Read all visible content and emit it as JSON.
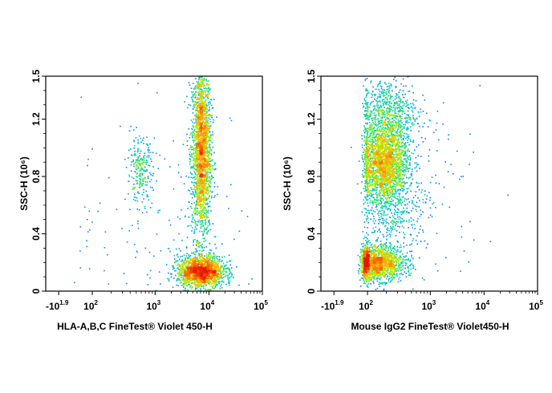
{
  "chart_data": [
    {
      "type": "scatter",
      "subtype": "flow-cytometry-density-dot-plot",
      "xlabel": "HLA-A,B,C  FineTest® Violet 450-H",
      "ylabel": "SSC-H (10⁶)",
      "x_scale": "biexponential",
      "x_ticks": [
        {
          "base": "-10",
          "exp": "1.9"
        },
        {
          "base": "10",
          "exp": "2"
        },
        {
          "base": "10",
          "exp": "3"
        },
        {
          "base": "10",
          "exp": "4"
        },
        {
          "base": "10",
          "exp": "5"
        }
      ],
      "y_ticks": [
        "0",
        "0.4",
        "0.8",
        "1.2",
        "1.5"
      ],
      "ylim": [
        0,
        1.5
      ],
      "populations": [
        {
          "x_log10": 3.85,
          "y": 0.98,
          "sx_log10": 0.09,
          "sy": 0.3,
          "n": 2300
        },
        {
          "x_log10": 3.85,
          "y": 0.14,
          "sx_log10": 0.22,
          "sy": 0.055,
          "n": 1800
        },
        {
          "x_log10": 2.75,
          "y": 0.84,
          "sx_log10": 0.1,
          "sy": 0.11,
          "n": 240
        },
        {
          "x_log10": 3.2,
          "y": 0.5,
          "sx_log10": 0.9,
          "sy": 0.4,
          "n": 160
        }
      ]
    },
    {
      "type": "scatter",
      "subtype": "flow-cytometry-density-dot-plot",
      "xlabel": "Mouse IgG2  FineTest® Violet450-H",
      "ylabel": "SSC-H (10⁶)",
      "x_scale": "biexponential",
      "x_ticks": [
        {
          "base": "-10",
          "exp": "1.9"
        },
        {
          "base": "10",
          "exp": "2"
        },
        {
          "base": "10",
          "exp": "3"
        },
        {
          "base": "10",
          "exp": "4"
        },
        {
          "base": "10",
          "exp": "5"
        }
      ],
      "y_ticks": [
        "0",
        "0.4",
        "0.8",
        "1.2",
        "1.5"
      ],
      "ylim": [
        0,
        1.5
      ],
      "populations": [
        {
          "x_log10": 2.25,
          "y": 0.9,
          "sx_log10": 0.2,
          "sy": 0.14,
          "n": 2400
        },
        {
          "x_log10": 2.3,
          "y": 1.25,
          "sx_log10": 0.24,
          "sy": 0.12,
          "n": 700
        },
        {
          "x_log10": 2.1,
          "y": 0.2,
          "sx_log10": 0.24,
          "sy": 0.06,
          "n": 1800
        },
        {
          "x_log10": 2.4,
          "y": 0.55,
          "sx_log10": 0.28,
          "sy": 0.12,
          "n": 350
        },
        {
          "x_log10": 2.8,
          "y": 0.7,
          "sx_log10": 0.6,
          "sy": 0.35,
          "n": 120
        }
      ]
    }
  ]
}
